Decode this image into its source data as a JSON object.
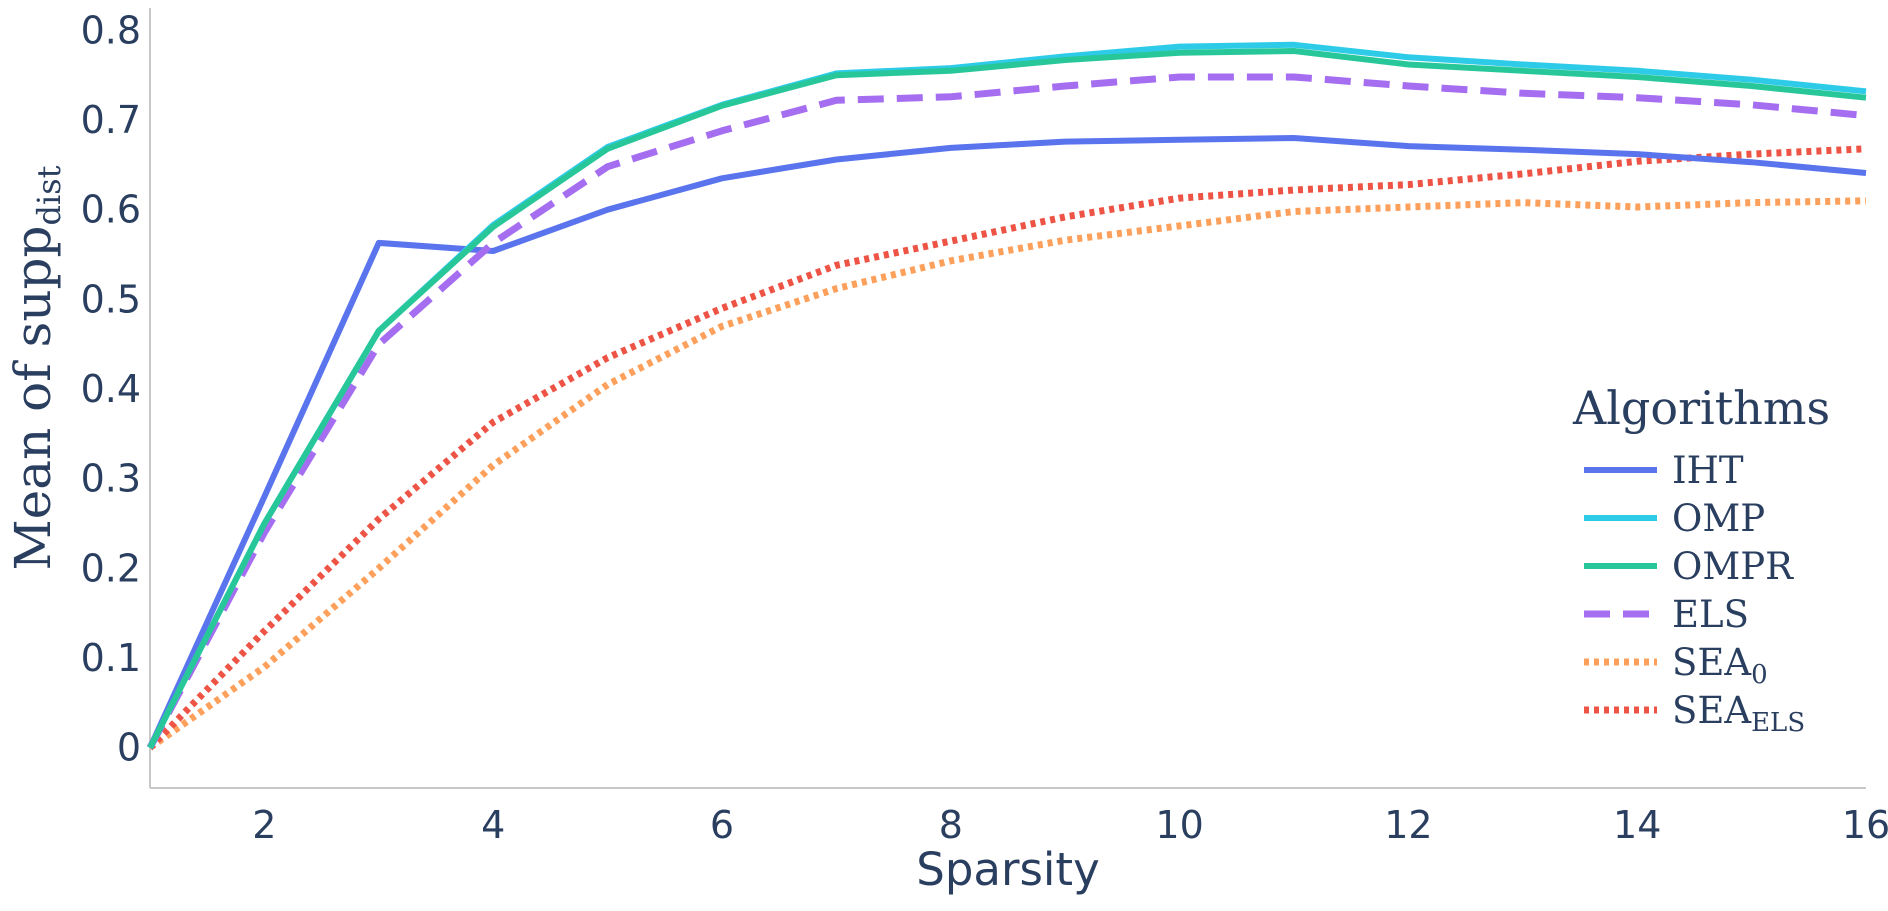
{
  "chart_data": {
    "type": "line",
    "xlabel": "Sparsity",
    "ylabel_main": "Mean of supp",
    "ylabel_sub": "dist",
    "xlim": [
      1,
      16
    ],
    "ylim": [
      -0.045,
      0.825
    ],
    "xticks": [
      2,
      4,
      6,
      8,
      10,
      12,
      14,
      16
    ],
    "yticks": [
      0,
      0.1,
      0.2,
      0.3,
      0.4,
      0.5,
      0.6,
      0.7,
      0.8
    ],
    "ytick_labels": [
      "0",
      "0.1",
      "0.2",
      "0.3",
      "0.4",
      "0.5",
      "0.6",
      "0.7",
      "0.8"
    ],
    "xtick_labels": [
      "2",
      "4",
      "6",
      "8",
      "10",
      "12",
      "14",
      "16"
    ],
    "grid": false,
    "legend_title": "Algorithms",
    "legend_position": "right",
    "x": [
      1,
      2,
      3,
      4,
      5,
      6,
      7,
      8,
      9,
      10,
      11,
      12,
      13,
      14,
      15,
      16
    ],
    "series": [
      {
        "name": "IHT",
        "label_main": "IHT",
        "label_sub": "",
        "color": "#5a74ee",
        "dash": "solid",
        "values": [
          0,
          0.28,
          0.563,
          0.554,
          0.6,
          0.635,
          0.656,
          0.669,
          0.676,
          0.678,
          0.68,
          0.671,
          0.667,
          0.662,
          0.653,
          0.641
        ]
      },
      {
        "name": "OMP",
        "label_main": "OMP",
        "label_sub": "",
        "color": "#2ecbe9",
        "dash": "solid",
        "values": [
          0,
          0.25,
          0.465,
          0.583,
          0.67,
          0.717,
          0.752,
          0.758,
          0.771,
          0.782,
          0.784,
          0.77,
          0.762,
          0.755,
          0.745,
          0.732
        ]
      },
      {
        "name": "OMPR",
        "label_main": "OMPR",
        "label_sub": "",
        "color": "#28c79a",
        "dash": "solid",
        "values": [
          0,
          0.25,
          0.465,
          0.581,
          0.668,
          0.716,
          0.75,
          0.755,
          0.767,
          0.775,
          0.777,
          0.762,
          0.755,
          0.748,
          0.738,
          0.725
        ]
      },
      {
        "name": "ELS",
        "label_main": "ELS",
        "label_sub": "",
        "color": "#a56ef0",
        "dash": "dashed",
        "values": [
          0,
          0.24,
          0.45,
          0.563,
          0.648,
          0.688,
          0.722,
          0.726,
          0.738,
          0.748,
          0.748,
          0.738,
          0.73,
          0.725,
          0.717,
          0.705
        ]
      },
      {
        "name": "SEA0",
        "label_main": "SEA",
        "label_sub": "0",
        "color": "#fca05c",
        "dash": "dotted",
        "values": [
          0,
          0.09,
          0.2,
          0.315,
          0.405,
          0.47,
          0.512,
          0.543,
          0.566,
          0.582,
          0.598,
          0.603,
          0.608,
          0.603,
          0.608,
          0.61
        ]
      },
      {
        "name": "SEAELS",
        "label_main": "SEA",
        "label_sub": "ELS",
        "color": "#ee5446",
        "dash": "dotted",
        "values": [
          0,
          0.13,
          0.255,
          0.363,
          0.435,
          0.49,
          0.538,
          0.565,
          0.592,
          0.613,
          0.622,
          0.628,
          0.64,
          0.654,
          0.662,
          0.668
        ]
      }
    ]
  }
}
